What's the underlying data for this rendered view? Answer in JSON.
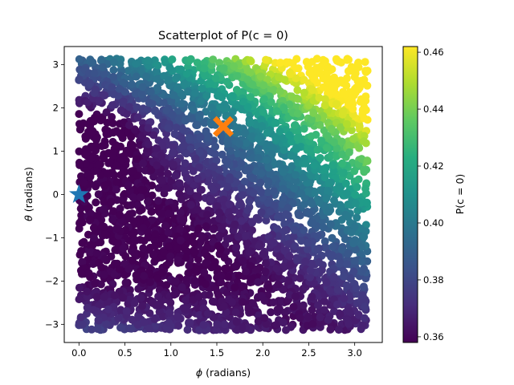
{
  "chart_data": {
    "type": "scatter",
    "title": "Scatterplot of P(c = 0)",
    "xlabel_symbol": "ϕ",
    "xlabel_rest": " (radians)",
    "ylabel_symbol": "θ",
    "ylabel_rest": " (radians)",
    "colorbar_label": "P(c = 0)",
    "xlim": [
      -0.16,
      3.3
    ],
    "ylim": [
      -3.42,
      3.42
    ],
    "xticks": [
      0.0,
      0.5,
      1.0,
      1.5,
      2.0,
      2.5,
      3.0
    ],
    "xtick_labels": [
      "0.0",
      "0.5",
      "1.0",
      "1.5",
      "2.0",
      "2.5",
      "3.0"
    ],
    "yticks": [
      3,
      2,
      1,
      0,
      -1,
      -2,
      -3
    ],
    "ytick_labels": [
      "3",
      "2",
      "1",
      "0",
      "−1",
      "−2",
      "−3"
    ],
    "colorbar_range": [
      0.358,
      0.462
    ],
    "colorbar_ticks": [
      0.46,
      0.44,
      0.42,
      0.4,
      0.38,
      0.36
    ],
    "colorbar_tick_labels": [
      "0.46",
      "0.44",
      "0.42",
      "0.40",
      "0.38",
      "0.36"
    ],
    "colormap": "viridis",
    "grid": false,
    "point_domain": {
      "x": [
        0.0,
        3.14
      ],
      "y": [
        -3.14,
        3.14
      ]
    },
    "markers": [
      {
        "name": "star",
        "x": 0.0,
        "y": 0.0,
        "color": "#1f77b4"
      },
      {
        "name": "cross",
        "x": 1.57,
        "y": 1.57,
        "color": "#ff7f0e"
      }
    ]
  }
}
